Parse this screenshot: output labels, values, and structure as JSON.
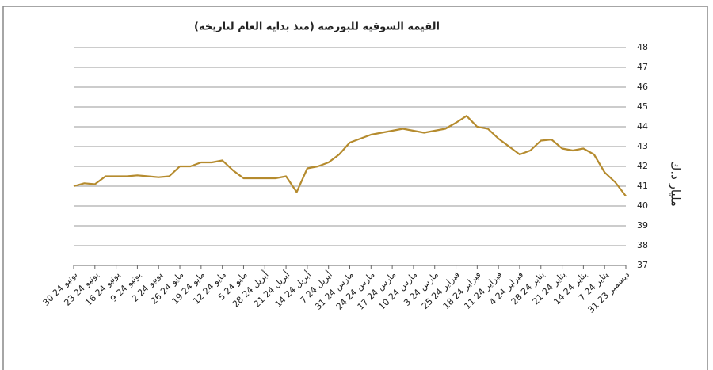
{
  "chart_data": {
    "type": "line",
    "title": "القيمة السوقية للبورصة (منذ بداية العام لتاريخه)",
    "y_label": "مليار د.ك",
    "categories": [
      "30 يونيو 24",
      null,
      "23 يونيو 24",
      null,
      "16 يونيو 24",
      null,
      "9 يونيو 24",
      null,
      "2 يونيو 24",
      null,
      "26 مايو 24",
      null,
      "19 مايو 24",
      null,
      "12 مايو 24",
      null,
      "5 مايو 24",
      null,
      "28 أبريل 24",
      null,
      "21 أبريل 24",
      null,
      "14 أبريل 24",
      null,
      "7 أبريل 24",
      null,
      "31 مارس 24",
      null,
      "24 مارس 24",
      null,
      "17 مارس 24",
      null,
      "10 مارس 24",
      null,
      "3 مارس 24",
      null,
      "25 فبراير 24",
      null,
      "18 فبراير 24",
      null,
      "11 فبراير 24",
      null,
      "4 فبراير 24",
      null,
      "28 يناير 24",
      null,
      "21 يناير 24",
      null,
      "14 يناير 24",
      null,
      "7 يناير 24",
      null,
      "31 ديسمبر 23"
    ],
    "series": [
      {
        "color": "#b58b2e",
        "values": [
          41.0,
          41.15,
          41.1,
          41.5,
          41.5,
          41.5,
          41.55,
          41.5,
          41.45,
          41.5,
          42.0,
          42.0,
          42.2,
          42.2,
          42.3,
          41.8,
          41.4,
          41.4,
          41.4,
          41.4,
          41.5,
          40.7,
          41.9,
          42.0,
          42.2,
          42.6,
          43.2,
          43.4,
          43.6,
          43.7,
          43.8,
          43.9,
          43.8,
          43.7,
          43.8,
          43.9,
          44.2,
          44.55,
          44.0,
          43.9,
          43.4,
          43.0,
          42.6,
          42.8,
          43.3,
          43.35,
          42.9,
          42.8,
          42.9,
          42.6,
          41.7,
          41.2,
          40.5
        ]
      }
    ],
    "ylim": [
      37,
      48
    ],
    "yticks": [
      37,
      38,
      39,
      40,
      41,
      42,
      43,
      44,
      45,
      46,
      47,
      48
    ],
    "grid": true
  }
}
